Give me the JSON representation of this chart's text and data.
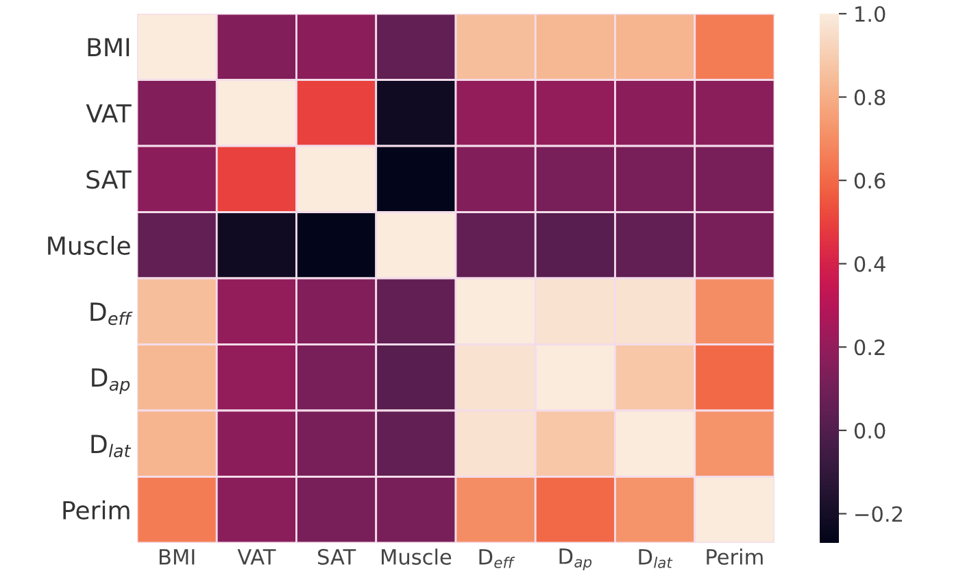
{
  "chart_data": {
    "type": "heatmap",
    "categories": [
      "BMI",
      "VAT",
      "SAT",
      "Muscle",
      "D$_{eff}$",
      "D$_{ap}$",
      "D$_{lat}$",
      "Perim"
    ],
    "y_categories": [
      "BMI",
      "VAT",
      "SAT",
      "Muscle",
      "D$_{eff}$",
      "D$_{ap}$",
      "D$_{lat}$",
      "Perim"
    ],
    "cells": [
      [
        1.0,
        0.15,
        0.18,
        0.05,
        0.85,
        0.83,
        0.82,
        0.65
      ],
      [
        0.15,
        1.0,
        0.5,
        -0.22,
        0.2,
        0.2,
        0.18,
        0.17
      ],
      [
        0.18,
        0.5,
        1.0,
        -0.27,
        0.15,
        0.12,
        0.12,
        0.12
      ],
      [
        0.05,
        -0.22,
        -0.27,
        1.0,
        0.05,
        0.02,
        0.05,
        0.12
      ],
      [
        0.85,
        0.2,
        0.15,
        0.05,
        1.0,
        0.97,
        0.97,
        0.7
      ],
      [
        0.83,
        0.2,
        0.12,
        0.02,
        0.97,
        1.0,
        0.88,
        0.6
      ],
      [
        0.82,
        0.18,
        0.12,
        0.05,
        0.97,
        0.88,
        1.0,
        0.72
      ],
      [
        0.65,
        0.17,
        0.12,
        0.12,
        0.7,
        0.6,
        0.72,
        1.0
      ]
    ],
    "clim": [
      -0.27,
      1.0
    ],
    "cticks": [
      {
        "value": -0.2,
        "label": "−0.2"
      },
      {
        "value": 0.0,
        "label": "0.0"
      },
      {
        "value": 0.2,
        "label": "0.2"
      },
      {
        "value": 0.4,
        "label": "0.4"
      },
      {
        "value": 0.6,
        "label": "0.6"
      },
      {
        "value": 0.8,
        "label": "0.8"
      },
      {
        "value": 1.0,
        "label": "1.0"
      }
    ]
  }
}
